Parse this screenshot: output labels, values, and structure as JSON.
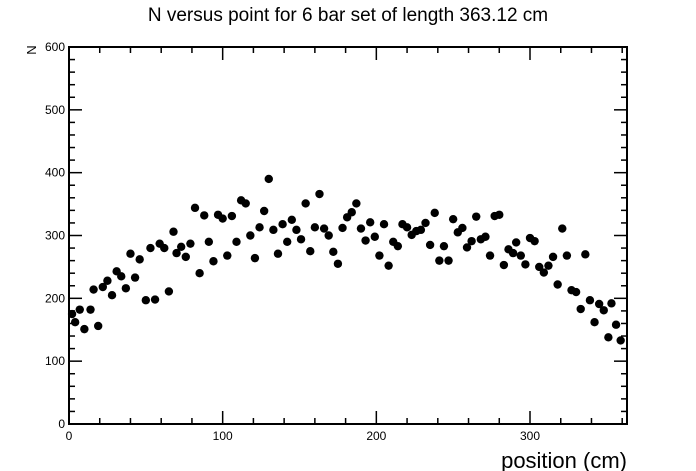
{
  "chart_data": {
    "type": "scatter",
    "title": "N versus point for 6 bar set of length 363.12 cm",
    "xlabel": "position (cm)",
    "ylabel": "N",
    "xlim": [
      0,
      363.12
    ],
    "ylim": [
      0,
      600
    ],
    "x_ticks": [
      0,
      100,
      200,
      300
    ],
    "y_ticks": [
      0,
      100,
      200,
      300,
      400,
      500,
      600
    ],
    "grid": false,
    "marker_color": "#000000",
    "points": [
      [
        2,
        175
      ],
      [
        4,
        162
      ],
      [
        7,
        182
      ],
      [
        10,
        151
      ],
      [
        14,
        182
      ],
      [
        16,
        214
      ],
      [
        19,
        156
      ],
      [
        22,
        218
      ],
      [
        25,
        228
      ],
      [
        28,
        205
      ],
      [
        31,
        243
      ],
      [
        34,
        235
      ],
      [
        37,
        216
      ],
      [
        40,
        271
      ],
      [
        43,
        233
      ],
      [
        46,
        262
      ],
      [
        50,
        197
      ],
      [
        53,
        280
      ],
      [
        56,
        198
      ],
      [
        59,
        287
      ],
      [
        62,
        280
      ],
      [
        65,
        211
      ],
      [
        68,
        306
      ],
      [
        70,
        272
      ],
      [
        73,
        282
      ],
      [
        76,
        266
      ],
      [
        79,
        287
      ],
      [
        82,
        344
      ],
      [
        85,
        240
      ],
      [
        88,
        332
      ],
      [
        91,
        290
      ],
      [
        94,
        259
      ],
      [
        97,
        333
      ],
      [
        100,
        327
      ],
      [
        103,
        268
      ],
      [
        106,
        331
      ],
      [
        109,
        290
      ],
      [
        112,
        356
      ],
      [
        115,
        351
      ],
      [
        118,
        300
      ],
      [
        121,
        264
      ],
      [
        124,
        313
      ],
      [
        127,
        339
      ],
      [
        130,
        390
      ],
      [
        133,
        309
      ],
      [
        136,
        271
      ],
      [
        139,
        318
      ],
      [
        142,
        290
      ],
      [
        145,
        325
      ],
      [
        148,
        309
      ],
      [
        151,
        294
      ],
      [
        154,
        351
      ],
      [
        157,
        275
      ],
      [
        160,
        313
      ],
      [
        163,
        366
      ],
      [
        166,
        311
      ],
      [
        169,
        300
      ],
      [
        172,
        274
      ],
      [
        175,
        255
      ],
      [
        178,
        312
      ],
      [
        181,
        329
      ],
      [
        184,
        337
      ],
      [
        187,
        351
      ],
      [
        190,
        311
      ],
      [
        193,
        292
      ],
      [
        196,
        321
      ],
      [
        199,
        298
      ],
      [
        202,
        268
      ],
      [
        205,
        318
      ],
      [
        208,
        252
      ],
      [
        211,
        290
      ],
      [
        214,
        283
      ],
      [
        217,
        318
      ],
      [
        220,
        313
      ],
      [
        223,
        301
      ],
      [
        226,
        307
      ],
      [
        229,
        309
      ],
      [
        232,
        320
      ],
      [
        235,
        285
      ],
      [
        238,
        336
      ],
      [
        241,
        260
      ],
      [
        244,
        283
      ],
      [
        247,
        260
      ],
      [
        250,
        326
      ],
      [
        253,
        305
      ],
      [
        256,
        312
      ],
      [
        259,
        281
      ],
      [
        262,
        291
      ],
      [
        265,
        330
      ],
      [
        268,
        294
      ],
      [
        271,
        298
      ],
      [
        274,
        268
      ],
      [
        277,
        331
      ],
      [
        280,
        333
      ],
      [
        283,
        253
      ],
      [
        286,
        278
      ],
      [
        289,
        272
      ],
      [
        291,
        289
      ],
      [
        294,
        268
      ],
      [
        297,
        254
      ],
      [
        300,
        296
      ],
      [
        303,
        291
      ],
      [
        306,
        250
      ],
      [
        309,
        241
      ],
      [
        312,
        252
      ],
      [
        315,
        266
      ],
      [
        318,
        222
      ],
      [
        321,
        311
      ],
      [
        324,
        268
      ],
      [
        327,
        213
      ],
      [
        330,
        210
      ],
      [
        333,
        183
      ],
      [
        336,
        270
      ],
      [
        339,
        197
      ],
      [
        342,
        162
      ],
      [
        345,
        191
      ],
      [
        348,
        181
      ],
      [
        351,
        138
      ],
      [
        353,
        192
      ],
      [
        356,
        158
      ],
      [
        359,
        133
      ]
    ]
  }
}
